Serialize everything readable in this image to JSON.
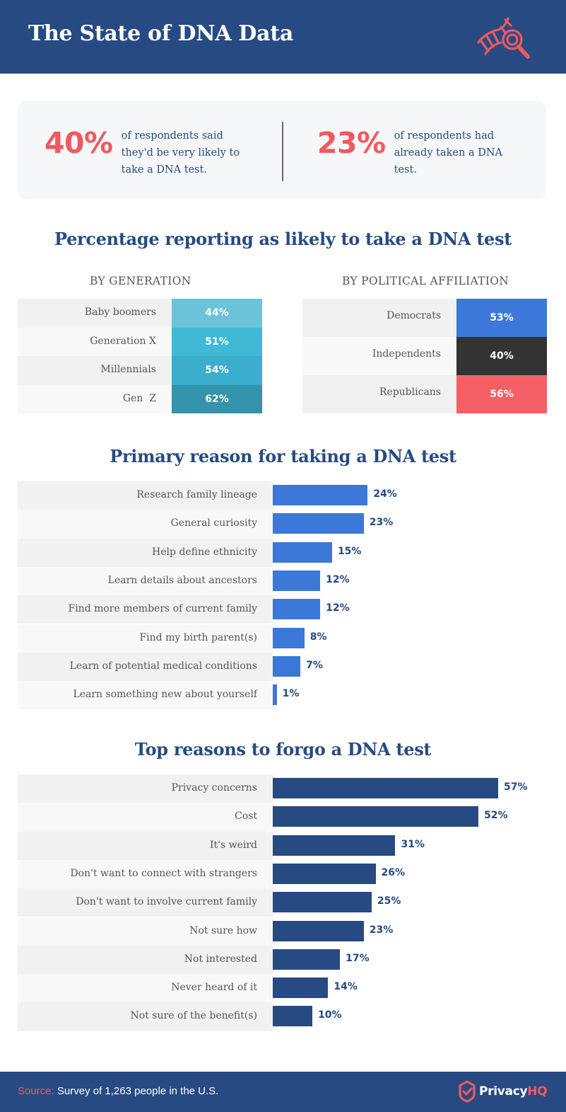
{
  "header": {
    "title": "The State of DNA Data",
    "icon": "dna-magnifier-icon"
  },
  "stats": [
    {
      "value": "40%",
      "text": "of respondents said they'd be very likely to take a DNA test."
    },
    {
      "value": "23%",
      "text": "of respondents had already taken a DNA test."
    }
  ],
  "colors": {
    "brand_navy": "#274a82",
    "accent_red": "#f0595f",
    "reason_bar": "#3b78d8",
    "forgo_bar": "#274a82",
    "democrats": "#3b78d8",
    "independents": "#333333",
    "republicans": "#f55f66"
  },
  "likely": {
    "title": "Percentage reporting as likely to take a DNA test",
    "by_generation": {
      "title": "BY GENERATION",
      "rows": [
        {
          "label": "Baby boomers",
          "value": "44%",
          "color": "#6cc3d9"
        },
        {
          "label": "Generation X",
          "value": "51%",
          "color": "#41b8d6"
        },
        {
          "label": "Millennials",
          "value": "54%",
          "color": "#3baece"
        },
        {
          "label": "Gen  Z",
          "value": "62%",
          "color": "#3394ab"
        }
      ]
    },
    "by_political": {
      "title": "BY POLITICAL AFFILIATION",
      "rows": [
        {
          "label": "Democrats",
          "value": "53%",
          "color": "#3b78d8"
        },
        {
          "label": "Independents",
          "value": "40%",
          "color": "#333333"
        },
        {
          "label": "Republicans",
          "value": "56%",
          "color": "#f55f66"
        }
      ]
    }
  },
  "primary": {
    "title": "Primary reason for taking a DNA test"
  },
  "forgo": {
    "title": "Top reasons to forgo a DNA test"
  },
  "footer": {
    "source_label": "Source:",
    "source_text": " Survey of 1,263 people in the U.S.",
    "logo_main": "Privacy",
    "logo_accent": "HQ",
    "logo_icon": "shield-check-icon"
  },
  "chart_data": [
    {
      "type": "table",
      "title": "Percentage reporting as likely to take a DNA test — BY GENERATION",
      "categories": [
        "Baby boomers",
        "Generation X",
        "Millennials",
        "Gen Z"
      ],
      "values": [
        44,
        51,
        54,
        62
      ],
      "unit": "%"
    },
    {
      "type": "table",
      "title": "Percentage reporting as likely to take a DNA test — BY POLITICAL AFFILIATION",
      "categories": [
        "Democrats",
        "Independents",
        "Republicans"
      ],
      "values": [
        53,
        40,
        56
      ],
      "unit": "%"
    },
    {
      "type": "bar",
      "orientation": "horizontal",
      "title": "Primary reason for taking a DNA test",
      "categories": [
        "Research family lineage",
        "General curiosity",
        "Help define ethnicity",
        "Learn details about ancestors",
        "Find more members of current family",
        "Find my birth parent(s)",
        "Learn of potential medical conditions",
        "Learn something new about yourself"
      ],
      "values": [
        24,
        23,
        15,
        12,
        12,
        8,
        7,
        1
      ],
      "labels": [
        "24%",
        "23%",
        "15%",
        "12%",
        "12%",
        "8%",
        "7%",
        "1%"
      ],
      "unit": "%",
      "xlim": [
        0,
        60
      ],
      "grid": false,
      "legend": "none"
    },
    {
      "type": "bar",
      "orientation": "horizontal",
      "title": "Top reasons to forgo a DNA test",
      "categories": [
        "Privacy concerns",
        "Cost",
        "It's weird",
        "Don't want to connect with strangers",
        "Don't want to involve current family",
        "Not sure how",
        "Not interested",
        "Never heard of it",
        "Not sure of the benefit(s)"
      ],
      "values": [
        57,
        52,
        31,
        26,
        25,
        23,
        17,
        14,
        10
      ],
      "labels": [
        "57%",
        "52%",
        "31%",
        "26%",
        "25%",
        "23%",
        "17%",
        "14%",
        "10%"
      ],
      "unit": "%",
      "xlim": [
        0,
        60
      ],
      "grid": false,
      "legend": "none"
    }
  ]
}
